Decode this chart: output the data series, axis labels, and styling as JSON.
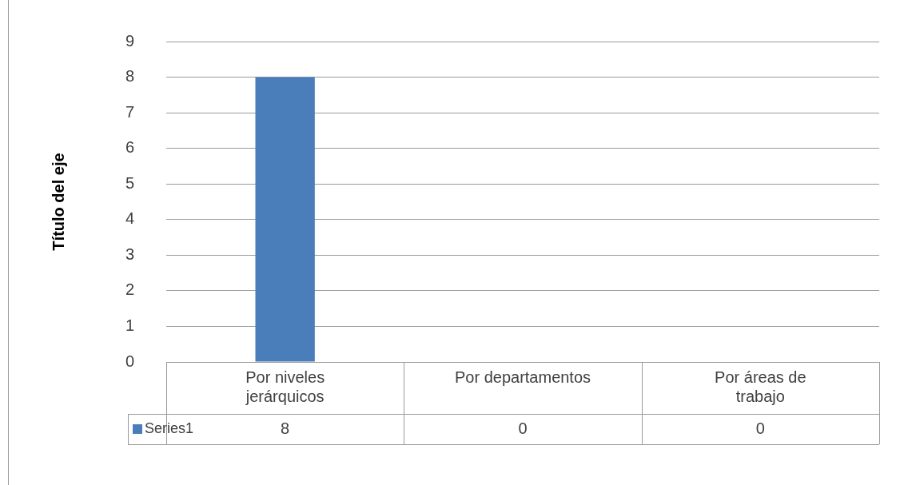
{
  "chart_data": {
    "type": "bar",
    "ylabel": "Título del eje",
    "categories": [
      "Por niveles jerárquicos",
      "Por departamentos",
      "Por áreas de trabajo"
    ],
    "series": [
      {
        "name": "Series1",
        "color": "#4a7ebb",
        "values": [
          8,
          0,
          0
        ]
      }
    ],
    "ylim": [
      0,
      9
    ],
    "yticks": [
      0,
      1,
      2,
      3,
      4,
      5,
      6,
      7,
      8,
      9
    ],
    "grid": "y",
    "data_labels": true
  }
}
